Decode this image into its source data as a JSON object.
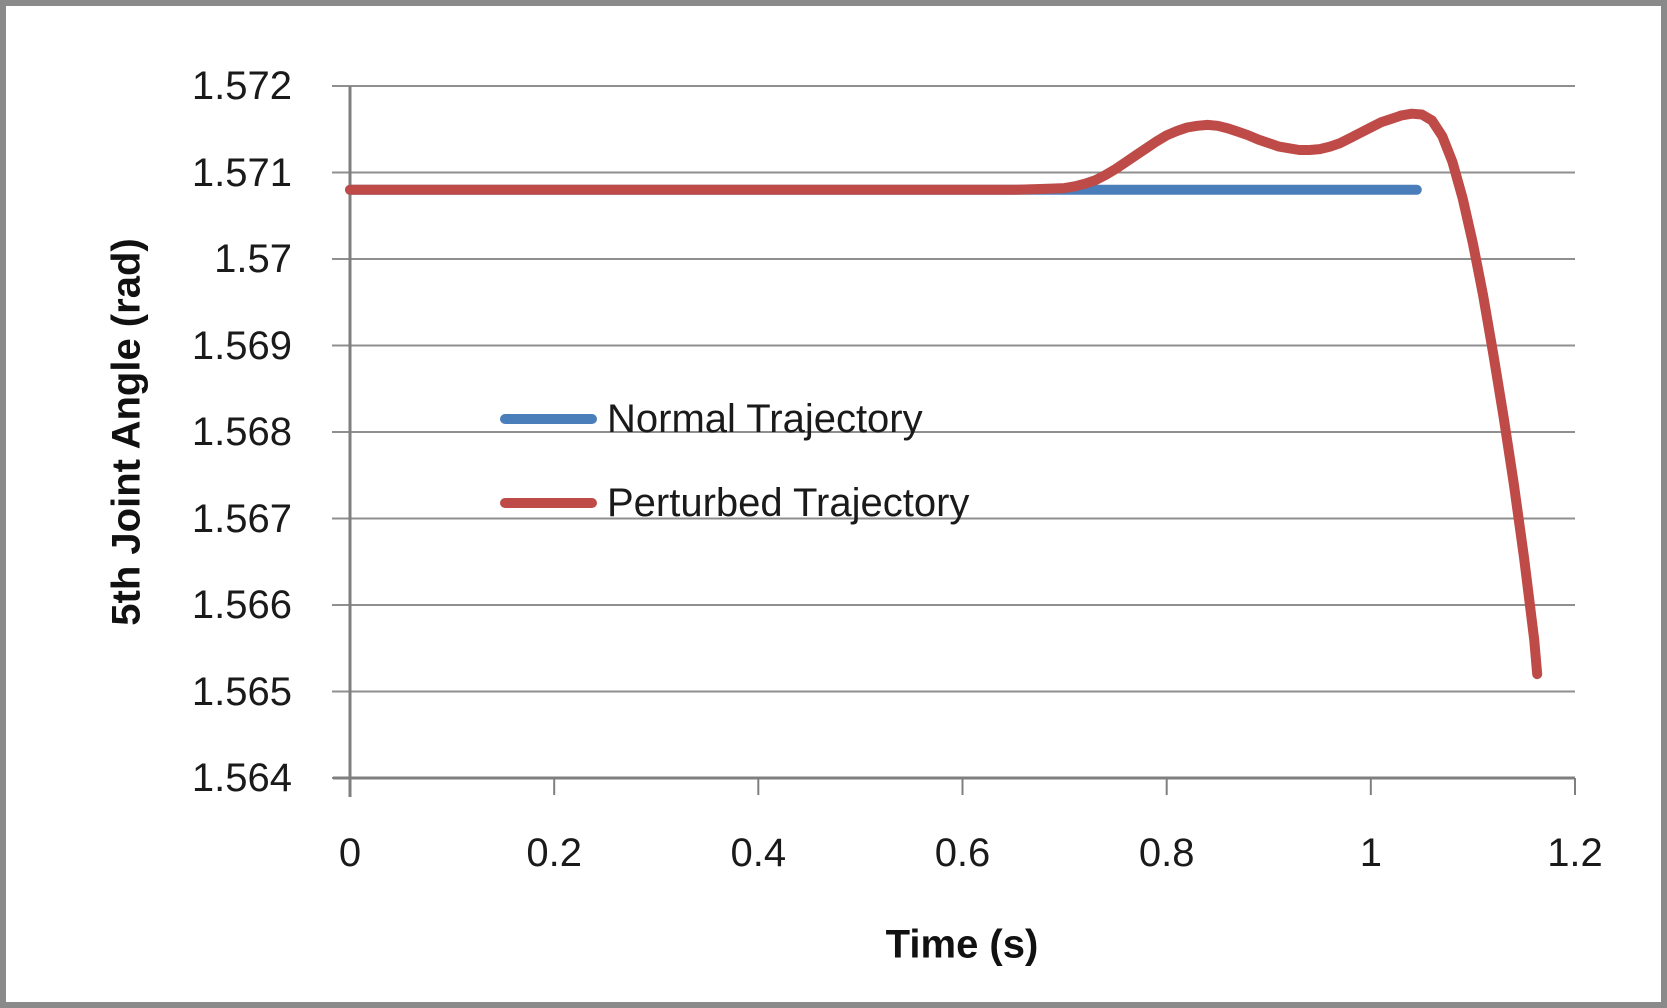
{
  "figure": {
    "frame_color": "#8a8a8a",
    "background": "#ffffff"
  },
  "colors": {
    "grid": "#8f8f8f",
    "axis": "#7f7f7f",
    "text": "#1a1a1a"
  },
  "chart_data": {
    "type": "line",
    "title": "",
    "xlabel": "Time (s)",
    "ylabel": "5th Joint Angle (rad)",
    "xlim": [
      0,
      1.2
    ],
    "ylim": [
      1.564,
      1.572
    ],
    "grid": "horizontal",
    "legend_position": "inside-center-left",
    "xticks": [
      {
        "value": 0,
        "label": "0"
      },
      {
        "value": 0.2,
        "label": "0.2"
      },
      {
        "value": 0.4,
        "label": "0.4"
      },
      {
        "value": 0.6,
        "label": "0.6"
      },
      {
        "value": 0.8,
        "label": "0.8"
      },
      {
        "value": 1,
        "label": "1"
      },
      {
        "value": 1.2,
        "label": "1.2"
      }
    ],
    "yticks": [
      {
        "value": 1.572,
        "label": "1.572"
      },
      {
        "value": 1.571,
        "label": "1.571"
      },
      {
        "value": 1.57,
        "label": "1.57"
      },
      {
        "value": 1.569,
        "label": "1.569"
      },
      {
        "value": 1.568,
        "label": "1.568"
      },
      {
        "value": 1.567,
        "label": "1.567"
      },
      {
        "value": 1.566,
        "label": "1.566"
      },
      {
        "value": 1.565,
        "label": "1.565"
      },
      {
        "value": 1.564,
        "label": "1.564"
      }
    ],
    "series": [
      {
        "name": "Normal Trajectory",
        "color": "#4A7EBB",
        "points": [
          [
            0,
            1.5708
          ],
          [
            1.045,
            1.5708
          ]
        ]
      },
      {
        "name": "Perturbed Trajectory",
        "color": "#BE4B48",
        "points": [
          [
            0,
            1.5708
          ],
          [
            0.1,
            1.5708
          ],
          [
            0.2,
            1.5708
          ],
          [
            0.3,
            1.5708
          ],
          [
            0.4,
            1.5708
          ],
          [
            0.5,
            1.5708
          ],
          [
            0.6,
            1.5708
          ],
          [
            0.65,
            1.5708
          ],
          [
            0.68,
            1.57081
          ],
          [
            0.7,
            1.57082
          ],
          [
            0.71,
            1.57084
          ],
          [
            0.72,
            1.57087
          ],
          [
            0.73,
            1.57091
          ],
          [
            0.74,
            1.57097
          ],
          [
            0.75,
            1.57104
          ],
          [
            0.76,
            1.57112
          ],
          [
            0.77,
            1.5712
          ],
          [
            0.78,
            1.57128
          ],
          [
            0.79,
            1.57136
          ],
          [
            0.8,
            1.57143
          ],
          [
            0.81,
            1.57148
          ],
          [
            0.82,
            1.57152
          ],
          [
            0.83,
            1.57154
          ],
          [
            0.84,
            1.57155
          ],
          [
            0.85,
            1.57154
          ],
          [
            0.86,
            1.57151
          ],
          [
            0.87,
            1.57147
          ],
          [
            0.88,
            1.57143
          ],
          [
            0.89,
            1.57138
          ],
          [
            0.9,
            1.57134
          ],
          [
            0.91,
            1.5713
          ],
          [
            0.92,
            1.57128
          ],
          [
            0.93,
            1.57126
          ],
          [
            0.94,
            1.57126
          ],
          [
            0.95,
            1.57127
          ],
          [
            0.96,
            1.5713
          ],
          [
            0.97,
            1.57134
          ],
          [
            0.98,
            1.5714
          ],
          [
            0.99,
            1.57146
          ],
          [
            1.0,
            1.57152
          ],
          [
            1.01,
            1.57158
          ],
          [
            1.02,
            1.57162
          ],
          [
            1.03,
            1.57166
          ],
          [
            1.04,
            1.57168
          ],
          [
            1.05,
            1.57167
          ],
          [
            1.06,
            1.5716
          ],
          [
            1.07,
            1.57142
          ],
          [
            1.08,
            1.57112
          ],
          [
            1.09,
            1.5707
          ],
          [
            1.1,
            1.57018
          ],
          [
            1.11,
            1.56958
          ],
          [
            1.12,
            1.5689
          ],
          [
            1.13,
            1.56818
          ],
          [
            1.14,
            1.5674
          ],
          [
            1.15,
            1.56655
          ],
          [
            1.16,
            1.5656
          ],
          [
            1.163,
            1.5652
          ]
        ]
      }
    ]
  }
}
